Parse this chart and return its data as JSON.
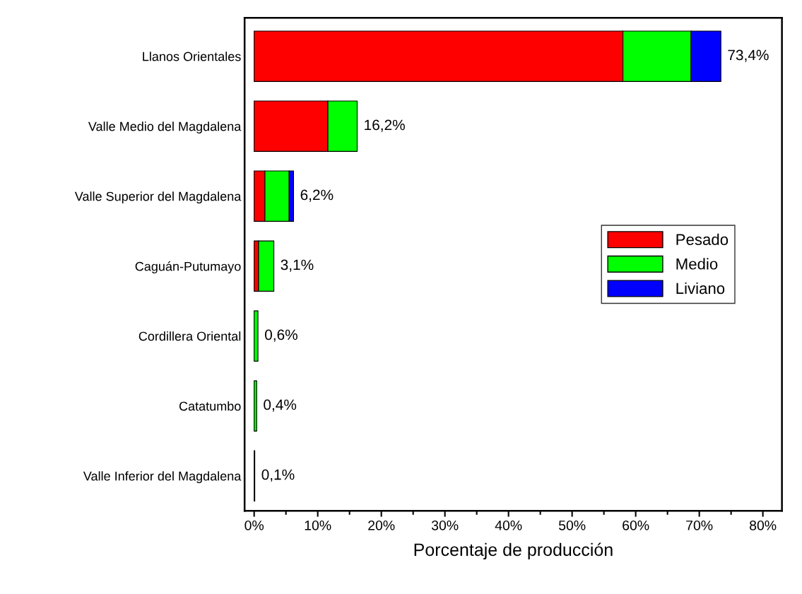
{
  "chart_data": {
    "type": "bar",
    "orientation": "horizontal",
    "stacked": true,
    "xlabel": "Porcentaje de producción",
    "categories": [
      "Llanos Orientales",
      "Valle Medio del Magdalena",
      "Valle Superior del Magdalena",
      "Caguán-Putumayo",
      "Cordillera Oriental",
      "Catatumbo",
      "Valle Inferior del Magdalena"
    ],
    "series": [
      {
        "name": "Pesado",
        "color": "#ff0000",
        "values": [
          58.0,
          11.6,
          1.7,
          0.7,
          null,
          null,
          null
        ]
      },
      {
        "name": "Medio",
        "color": "#00ff00",
        "values": [
          10.7,
          4.6,
          3.8,
          2.4,
          0.6,
          0.4,
          0.1
        ]
      },
      {
        "name": "Liviano",
        "color": "#0000ff",
        "values": [
          4.7,
          null,
          0.7,
          null,
          null,
          null,
          null
        ]
      }
    ],
    "totals": [
      "73,4%",
      "16,2%",
      "6,2%",
      "3,1%",
      "0,6%",
      "0,4%",
      "0,1%"
    ],
    "xlim": [
      -1.5,
      83
    ],
    "xticks": [
      {
        "value": 0,
        "label": "0%"
      },
      {
        "value": 10,
        "label": "10%"
      },
      {
        "value": 20,
        "label": "20%"
      },
      {
        "value": 30,
        "label": "30%"
      },
      {
        "value": 40,
        "label": "40%"
      },
      {
        "value": 50,
        "label": "50%"
      },
      {
        "value": 60,
        "label": "60%"
      },
      {
        "value": 70,
        "label": "70%"
      },
      {
        "value": 80,
        "label": "80%"
      }
    ],
    "grid": false,
    "legend": "center right"
  }
}
